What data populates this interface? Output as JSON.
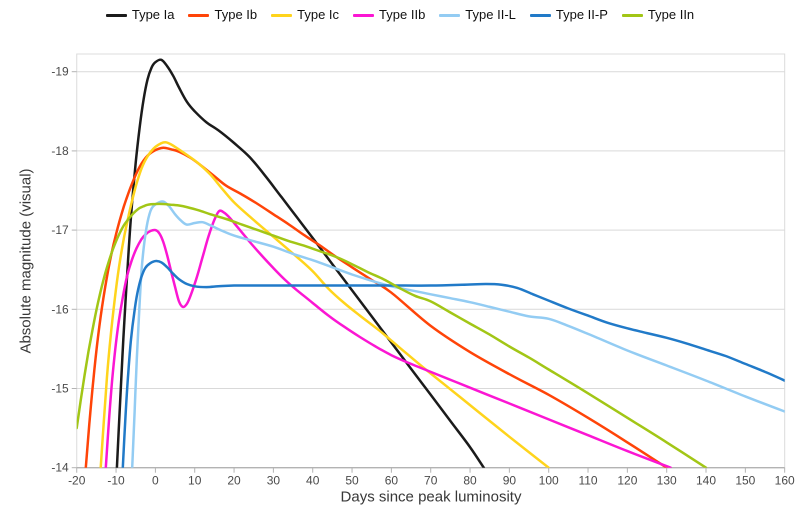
{
  "styles": {
    "background": "#ffffff",
    "grid_color": "#d9d9d9",
    "border_color": "#dcdcdc",
    "axis_color": "#b3b3b3",
    "tick_label_color": "#4a4a4a",
    "axis_label_color": "#383838",
    "legend_text_color": "#111111"
  },
  "chart_data": {
    "type": "line",
    "title": "",
    "xlabel": "Days since peak luminosity",
    "ylabel": "Absolute magnitude (visual)",
    "xlim": [
      -20,
      160
    ],
    "ylim": [
      -19.22,
      -14
    ],
    "y_inverted": true,
    "grid": "horizontal",
    "legend_position": "top-center",
    "x_ticks": [
      -20,
      -10,
      0,
      10,
      20,
      30,
      40,
      50,
      60,
      70,
      80,
      90,
      100,
      110,
      120,
      130,
      140,
      150,
      160
    ],
    "y_ticks": [
      -19,
      -18,
      -17,
      -16,
      -15,
      -14
    ],
    "series": [
      {
        "name": "Type Ia",
        "color": "#1b1b1b",
        "points": [
          [
            -9.8,
            -14
          ],
          [
            -9.1,
            -14.7
          ],
          [
            -8.4,
            -15.4
          ],
          [
            -7.6,
            -16.1
          ],
          [
            -6.8,
            -16.75
          ],
          [
            -6,
            -17.3
          ],
          [
            -5,
            -17.85
          ],
          [
            -4,
            -18.3
          ],
          [
            -3,
            -18.65
          ],
          [
            -2,
            -18.9
          ],
          [
            -1,
            -19.05
          ],
          [
            0,
            -19.12
          ],
          [
            1.5,
            -19.15
          ],
          [
            3,
            -19.07
          ],
          [
            4.5,
            -18.95
          ],
          [
            6,
            -18.8
          ],
          [
            8,
            -18.62
          ],
          [
            10,
            -18.5
          ],
          [
            13,
            -18.36
          ],
          [
            16,
            -18.26
          ],
          [
            20,
            -18.1
          ],
          [
            24,
            -17.92
          ],
          [
            28,
            -17.68
          ],
          [
            32,
            -17.42
          ],
          [
            36,
            -17.16
          ],
          [
            40,
            -16.9
          ],
          [
            45,
            -16.57
          ],
          [
            50,
            -16.24
          ],
          [
            55,
            -15.91
          ],
          [
            60,
            -15.58
          ],
          [
            65,
            -15.25
          ],
          [
            70,
            -14.92
          ],
          [
            75,
            -14.59
          ],
          [
            80,
            -14.26
          ],
          [
            83.5,
            -14
          ]
        ]
      },
      {
        "name": "Type Ib",
        "color": "#ff4408",
        "points": [
          [
            -17.7,
            -14
          ],
          [
            -16.8,
            -14.55
          ],
          [
            -15.8,
            -15.1
          ],
          [
            -14.6,
            -15.65
          ],
          [
            -13.2,
            -16.15
          ],
          [
            -11.6,
            -16.6
          ],
          [
            -10,
            -16.95
          ],
          [
            -8,
            -17.3
          ],
          [
            -6,
            -17.58
          ],
          [
            -4,
            -17.8
          ],
          [
            -2,
            -17.94
          ],
          [
            0,
            -18.01
          ],
          [
            2,
            -18.04
          ],
          [
            4,
            -18.02
          ],
          [
            6,
            -17.99
          ],
          [
            9,
            -17.91
          ],
          [
            12,
            -17.8
          ],
          [
            15,
            -17.68
          ],
          [
            18,
            -17.56
          ],
          [
            22,
            -17.45
          ],
          [
            26,
            -17.33
          ],
          [
            30,
            -17.2
          ],
          [
            34,
            -17.07
          ],
          [
            38,
            -16.93
          ],
          [
            42,
            -16.8
          ],
          [
            46,
            -16.66
          ],
          [
            50,
            -16.53
          ],
          [
            55,
            -16.37
          ],
          [
            60,
            -16.21
          ],
          [
            70,
            -15.79
          ],
          [
            80,
            -15.46
          ],
          [
            90,
            -15.18
          ],
          [
            100,
            -14.92
          ],
          [
            110,
            -14.63
          ],
          [
            120,
            -14.32
          ],
          [
            130,
            -14
          ]
        ]
      },
      {
        "name": "Type Ic",
        "color": "#ffd41c",
        "points": [
          [
            -13.9,
            -14
          ],
          [
            -13.1,
            -14.6
          ],
          [
            -12.3,
            -15.15
          ],
          [
            -11.4,
            -15.65
          ],
          [
            -10.4,
            -16.1
          ],
          [
            -9.2,
            -16.55
          ],
          [
            -8,
            -16.9
          ],
          [
            -6.5,
            -17.25
          ],
          [
            -5,
            -17.55
          ],
          [
            -3.5,
            -17.78
          ],
          [
            -2,
            -17.93
          ],
          [
            0,
            -18.05
          ],
          [
            2.5,
            -18.11
          ],
          [
            5,
            -18.05
          ],
          [
            8,
            -17.95
          ],
          [
            11,
            -17.84
          ],
          [
            14,
            -17.7
          ],
          [
            17,
            -17.52
          ],
          [
            20,
            -17.35
          ],
          [
            24,
            -17.17
          ],
          [
            28,
            -17.0
          ],
          [
            32,
            -16.83
          ],
          [
            36,
            -16.66
          ],
          [
            40,
            -16.48
          ],
          [
            44,
            -16.26
          ],
          [
            48,
            -16.08
          ],
          [
            52,
            -15.92
          ],
          [
            57,
            -15.73
          ],
          [
            62,
            -15.52
          ],
          [
            68,
            -15.27
          ],
          [
            75,
            -14.99
          ],
          [
            82,
            -14.71
          ],
          [
            90,
            -14.39
          ],
          [
            100,
            -14
          ]
        ]
      },
      {
        "name": "Type IIb",
        "color": "#fb16d3",
        "points": [
          [
            -12.6,
            -14
          ],
          [
            -11.8,
            -14.6
          ],
          [
            -11,
            -15.1
          ],
          [
            -10.2,
            -15.5
          ],
          [
            -9.3,
            -15.85
          ],
          [
            -8.3,
            -16.15
          ],
          [
            -7.2,
            -16.42
          ],
          [
            -6,
            -16.62
          ],
          [
            -4.8,
            -16.77
          ],
          [
            -3.6,
            -16.88
          ],
          [
            -2.4,
            -16.95
          ],
          [
            -1.2,
            -16.99
          ],
          [
            0,
            -17
          ],
          [
            1,
            -16.96
          ],
          [
            2,
            -16.85
          ],
          [
            3,
            -16.68
          ],
          [
            4,
            -16.48
          ],
          [
            5,
            -16.28
          ],
          [
            6,
            -16.1
          ],
          [
            7,
            -16.03
          ],
          [
            8,
            -16.07
          ],
          [
            9,
            -16.18
          ],
          [
            10.5,
            -16.4
          ],
          [
            12,
            -16.66
          ],
          [
            13.5,
            -16.92
          ],
          [
            15,
            -17.13
          ],
          [
            16.2,
            -17.24
          ],
          [
            17.5,
            -17.22
          ],
          [
            19,
            -17.15
          ],
          [
            21,
            -17.03
          ],
          [
            24,
            -16.85
          ],
          [
            27,
            -16.68
          ],
          [
            30,
            -16.52
          ],
          [
            33,
            -16.37
          ],
          [
            36,
            -16.24
          ],
          [
            40,
            -16.08
          ],
          [
            44,
            -15.92
          ],
          [
            48,
            -15.78
          ],
          [
            52,
            -15.65
          ],
          [
            56,
            -15.53
          ],
          [
            60,
            -15.42
          ],
          [
            65,
            -15.31
          ],
          [
            70,
            -15.21
          ],
          [
            80,
            -15.01
          ],
          [
            90,
            -14.81
          ],
          [
            100,
            -14.61
          ],
          [
            110,
            -14.41
          ],
          [
            120,
            -14.21
          ],
          [
            131,
            -14
          ]
        ]
      },
      {
        "name": "Type II-L",
        "color": "#93ccf3",
        "points": [
          [
            -5.9,
            -14
          ],
          [
            -5.3,
            -14.7
          ],
          [
            -4.7,
            -15.4
          ],
          [
            -4.1,
            -16.0
          ],
          [
            -3.5,
            -16.5
          ],
          [
            -2.8,
            -16.85
          ],
          [
            -2,
            -17.1
          ],
          [
            -1,
            -17.27
          ],
          [
            0.5,
            -17.34
          ],
          [
            2,
            -17.36
          ],
          [
            3.5,
            -17.3
          ],
          [
            5,
            -17.2
          ],
          [
            6.5,
            -17.12
          ],
          [
            8,
            -17.07
          ],
          [
            10,
            -17.09
          ],
          [
            12,
            -17.1
          ],
          [
            14,
            -17.06
          ],
          [
            17,
            -16.99
          ],
          [
            20,
            -16.93
          ],
          [
            25,
            -16.86
          ],
          [
            30,
            -16.79
          ],
          [
            35,
            -16.7
          ],
          [
            40,
            -16.62
          ],
          [
            45,
            -16.53
          ],
          [
            50,
            -16.44
          ],
          [
            55,
            -16.36
          ],
          [
            60,
            -16.29
          ],
          [
            65,
            -16.24
          ],
          [
            70,
            -16.19
          ],
          [
            75,
            -16.14
          ],
          [
            80,
            -16.09
          ],
          [
            85,
            -16.03
          ],
          [
            90,
            -15.97
          ],
          [
            95,
            -15.91
          ],
          [
            100,
            -15.88
          ],
          [
            105,
            -15.79
          ],
          [
            110,
            -15.69
          ],
          [
            120,
            -15.48
          ],
          [
            130,
            -15.29
          ],
          [
            140,
            -15.1
          ],
          [
            150,
            -14.9
          ],
          [
            160,
            -14.71
          ]
        ]
      },
      {
        "name": "Type II-P",
        "color": "#217ac8",
        "points": [
          [
            -8.3,
            -14
          ],
          [
            -7.6,
            -14.65
          ],
          [
            -6.9,
            -15.2
          ],
          [
            -6.2,
            -15.62
          ],
          [
            -5.4,
            -15.95
          ],
          [
            -4.6,
            -16.2
          ],
          [
            -3.6,
            -16.4
          ],
          [
            -2.6,
            -16.52
          ],
          [
            -1.4,
            -16.58
          ],
          [
            0.2,
            -16.61
          ],
          [
            1.6,
            -16.59
          ],
          [
            3,
            -16.53
          ],
          [
            4.5,
            -16.45
          ],
          [
            6,
            -16.38
          ],
          [
            8,
            -16.32
          ],
          [
            10,
            -16.29
          ],
          [
            13,
            -16.28
          ],
          [
            16,
            -16.29
          ],
          [
            20,
            -16.3
          ],
          [
            30,
            -16.3
          ],
          [
            40,
            -16.3
          ],
          [
            50,
            -16.3
          ],
          [
            60,
            -16.3
          ],
          [
            70,
            -16.3
          ],
          [
            78,
            -16.31
          ],
          [
            84,
            -16.32
          ],
          [
            88,
            -16.31
          ],
          [
            92,
            -16.27
          ],
          [
            96,
            -16.19
          ],
          [
            100,
            -16.11
          ],
          [
            105,
            -16.01
          ],
          [
            110,
            -15.92
          ],
          [
            115,
            -15.83
          ],
          [
            120,
            -15.76
          ],
          [
            125,
            -15.7
          ],
          [
            130,
            -15.64
          ],
          [
            135,
            -15.57
          ],
          [
            140,
            -15.49
          ],
          [
            145,
            -15.41
          ],
          [
            150,
            -15.31
          ],
          [
            155,
            -15.21
          ],
          [
            160,
            -15.1
          ]
        ]
      },
      {
        "name": "Type IIn",
        "color": "#a2c616",
        "points": [
          [
            -20,
            -14.5
          ],
          [
            -19,
            -14.85
          ],
          [
            -18,
            -15.17
          ],
          [
            -17,
            -15.47
          ],
          [
            -16,
            -15.74
          ],
          [
            -15,
            -15.99
          ],
          [
            -14,
            -16.21
          ],
          [
            -13,
            -16.41
          ],
          [
            -12,
            -16.58
          ],
          [
            -11,
            -16.73
          ],
          [
            -10,
            -16.86
          ],
          [
            -9,
            -16.97
          ],
          [
            -8,
            -17.06
          ],
          [
            -7,
            -17.13
          ],
          [
            -6,
            -17.19
          ],
          [
            -5,
            -17.24
          ],
          [
            -4,
            -17.28
          ],
          [
            -3,
            -17.3
          ],
          [
            -2,
            -17.32
          ],
          [
            0,
            -17.33
          ],
          [
            2,
            -17.33
          ],
          [
            4,
            -17.32
          ],
          [
            6,
            -17.31
          ],
          [
            8,
            -17.29
          ],
          [
            11,
            -17.25
          ],
          [
            14,
            -17.2
          ],
          [
            18,
            -17.14
          ],
          [
            22,
            -17.07
          ],
          [
            26,
            -17.0
          ],
          [
            30,
            -16.93
          ],
          [
            34,
            -16.86
          ],
          [
            38,
            -16.8
          ],
          [
            42,
            -16.73
          ],
          [
            46,
            -16.66
          ],
          [
            50,
            -16.57
          ],
          [
            54,
            -16.47
          ],
          [
            58,
            -16.38
          ],
          [
            62,
            -16.27
          ],
          [
            66,
            -16.17
          ],
          [
            70,
            -16.1
          ],
          [
            75,
            -15.96
          ],
          [
            80,
            -15.82
          ],
          [
            85,
            -15.68
          ],
          [
            90,
            -15.53
          ],
          [
            95,
            -15.39
          ],
          [
            100,
            -15.24
          ],
          [
            110,
            -14.94
          ],
          [
            120,
            -14.63
          ],
          [
            130,
            -14.32
          ],
          [
            140,
            -14
          ]
        ]
      }
    ]
  }
}
